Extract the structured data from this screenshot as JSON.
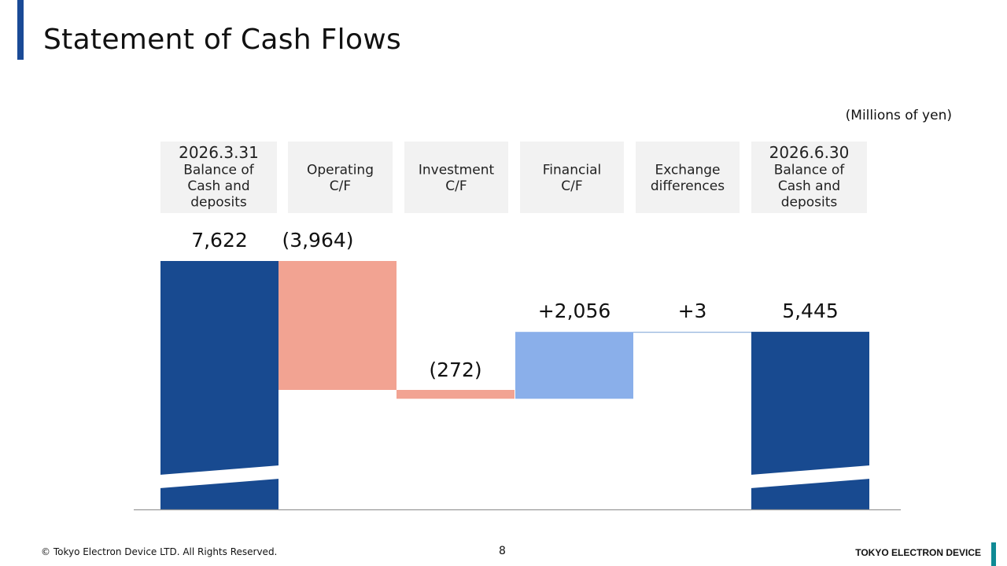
{
  "page": {
    "title": "Statement of Cash Flows",
    "footer_copyright": "© Tokyo Electron Device LTD. All Rights Reserved.",
    "page_number": "8",
    "brand": "TOKYO ELECTRON DEVICE"
  },
  "colors": {
    "title_accent": "#1a4a96",
    "balance": "#184a90",
    "negative": "#f2a392",
    "positive": "#8aafea",
    "neutral_line": "#8fb0dc",
    "header_bg": "#f2f2f2",
    "axis": "#999999",
    "footer_accent": "#0f8a95"
  },
  "chart_data": {
    "type": "bar",
    "subtype": "waterfall",
    "unit": "(Millions of yen)",
    "axis_break_on_balance_bars": true,
    "categories": [
      [
        "2026.3.31",
        "Balance of",
        "Cash and",
        "deposits"
      ],
      [
        "Operating",
        "C/F"
      ],
      [
        "Investment",
        "C/F"
      ],
      [
        "Financial",
        "C/F"
      ],
      [
        "Exchange",
        "differences"
      ],
      [
        "2026.6.30",
        "Balance of",
        "Cash and",
        "deposits"
      ]
    ],
    "values": [
      7622,
      -3964,
      -272,
      2056,
      3,
      5445
    ],
    "kinds": [
      "total",
      "delta",
      "delta",
      "delta",
      "delta",
      "total"
    ],
    "labels": [
      "7,622",
      "(3,964)",
      "(272)",
      "+2,056",
      "+3",
      "5,445"
    ]
  }
}
